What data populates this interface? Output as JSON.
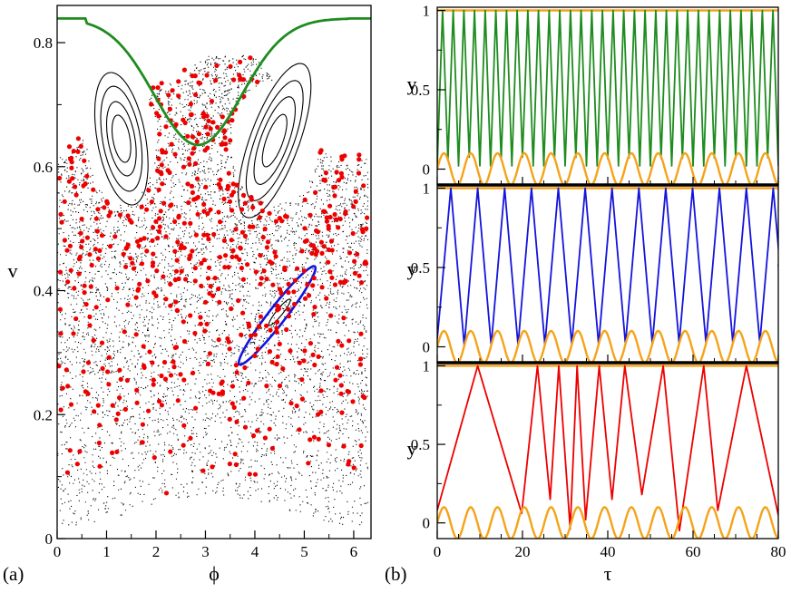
{
  "colors": {
    "chaos_points": "#000000",
    "red_points": "#ee0000",
    "green": "#1e8c1e",
    "blue": "#1414dc",
    "red": "#ee0000",
    "orange": "#f5a31a",
    "black": "#000000"
  },
  "chart_data": [
    {
      "type": "scatter",
      "name": "poincare-section",
      "panel_label": "(a)",
      "xlabel": "ϕ",
      "ylabel": "v",
      "xlim": [
        0,
        6.35
      ],
      "ylim": [
        0,
        0.86
      ],
      "xticks": [
        0,
        1,
        2,
        3,
        4,
        5,
        6
      ],
      "yticks": [
        0,
        0.2,
        0.4,
        0.6,
        0.8
      ],
      "ytick_labels": [
        "0",
        "0.2",
        "0.4",
        "0.6",
        "0.8"
      ],
      "series": [
        {
          "name": "rotational-orbit",
          "color": "green",
          "style": "line",
          "description_values": {
            "v_at_phi_0": 0.84,
            "v_min": 0.635,
            "phi_at_min": 2.85
          }
        },
        {
          "name": "island-left",
          "color": "black",
          "style": "closed-curves",
          "center": [
            1.3,
            0.645
          ]
        },
        {
          "name": "island-right",
          "color": "black",
          "style": "closed-curves",
          "center": [
            4.4,
            0.645
          ]
        },
        {
          "name": "small-island",
          "color": "blue",
          "style": "closed-curve",
          "center": [
            4.45,
            0.36
          ]
        },
        {
          "name": "chaotic-sea",
          "color": "black",
          "style": "dots"
        },
        {
          "name": "stroboscopic-points",
          "color": "red",
          "style": "dots"
        }
      ]
    },
    {
      "type": "line",
      "name": "trajectory-top",
      "ylabel": "y",
      "xlim": [
        0,
        80
      ],
      "ylim": [
        -0.1,
        1.02
      ],
      "yticks": [
        0,
        0.5,
        1
      ],
      "ytick_labels": [
        "0",
        "0.5",
        "1"
      ],
      "series": [
        {
          "name": "particle",
          "color": "green",
          "period": 2.5,
          "min": 0.0,
          "max": 1.0
        },
        {
          "name": "wall",
          "color": "orange",
          "period": 6.28,
          "amplitude": 0.1
        }
      ]
    },
    {
      "type": "line",
      "name": "trajectory-middle",
      "ylabel": "y",
      "xlim": [
        0,
        80
      ],
      "ylim": [
        -0.1,
        1.02
      ],
      "yticks": [
        0,
        0.5,
        1
      ],
      "ytick_labels": [
        "0",
        "0.5",
        "1"
      ],
      "series": [
        {
          "name": "particle",
          "color": "blue",
          "peaks_x": [
            3.2,
            9.5,
            15.8,
            22.1,
            28.4,
            34.7,
            41.0,
            47.3,
            53.6,
            59.9,
            66.2,
            72.5,
            78.8
          ]
        },
        {
          "name": "wall",
          "color": "orange",
          "period": 6.28,
          "amplitude": 0.1
        }
      ]
    },
    {
      "type": "line",
      "name": "trajectory-bottom",
      "panel_label": "(b)",
      "xlabel": "τ",
      "ylabel": "y",
      "xlim": [
        0,
        80
      ],
      "ylim": [
        -0.1,
        1.02
      ],
      "xticks": [
        0,
        20,
        40,
        60,
        80
      ],
      "yticks": [
        0,
        0.5,
        1
      ],
      "ytick_labels": [
        "0",
        "0.5",
        "1"
      ],
      "series": [
        {
          "name": "particle",
          "color": "red",
          "points": [
            [
              0,
              0.08
            ],
            [
              9.5,
              1
            ],
            [
              19.8,
              0.06
            ],
            [
              23.5,
              1
            ],
            [
              26.5,
              0.15
            ],
            [
              28.5,
              1
            ],
            [
              31.2,
              -0.04
            ],
            [
              32.8,
              1
            ],
            [
              34.8,
              0.02
            ],
            [
              38,
              1
            ],
            [
              41,
              0.15
            ],
            [
              44,
              1
            ],
            [
              48,
              0.18
            ],
            [
              53,
              1
            ],
            [
              56.8,
              -0.05
            ],
            [
              62.5,
              1
            ],
            [
              65.8,
              0.08
            ],
            [
              72.5,
              1
            ],
            [
              80,
              0.05
            ]
          ]
        },
        {
          "name": "wall",
          "color": "orange",
          "period": 6.28,
          "amplitude": 0.1
        }
      ]
    }
  ]
}
